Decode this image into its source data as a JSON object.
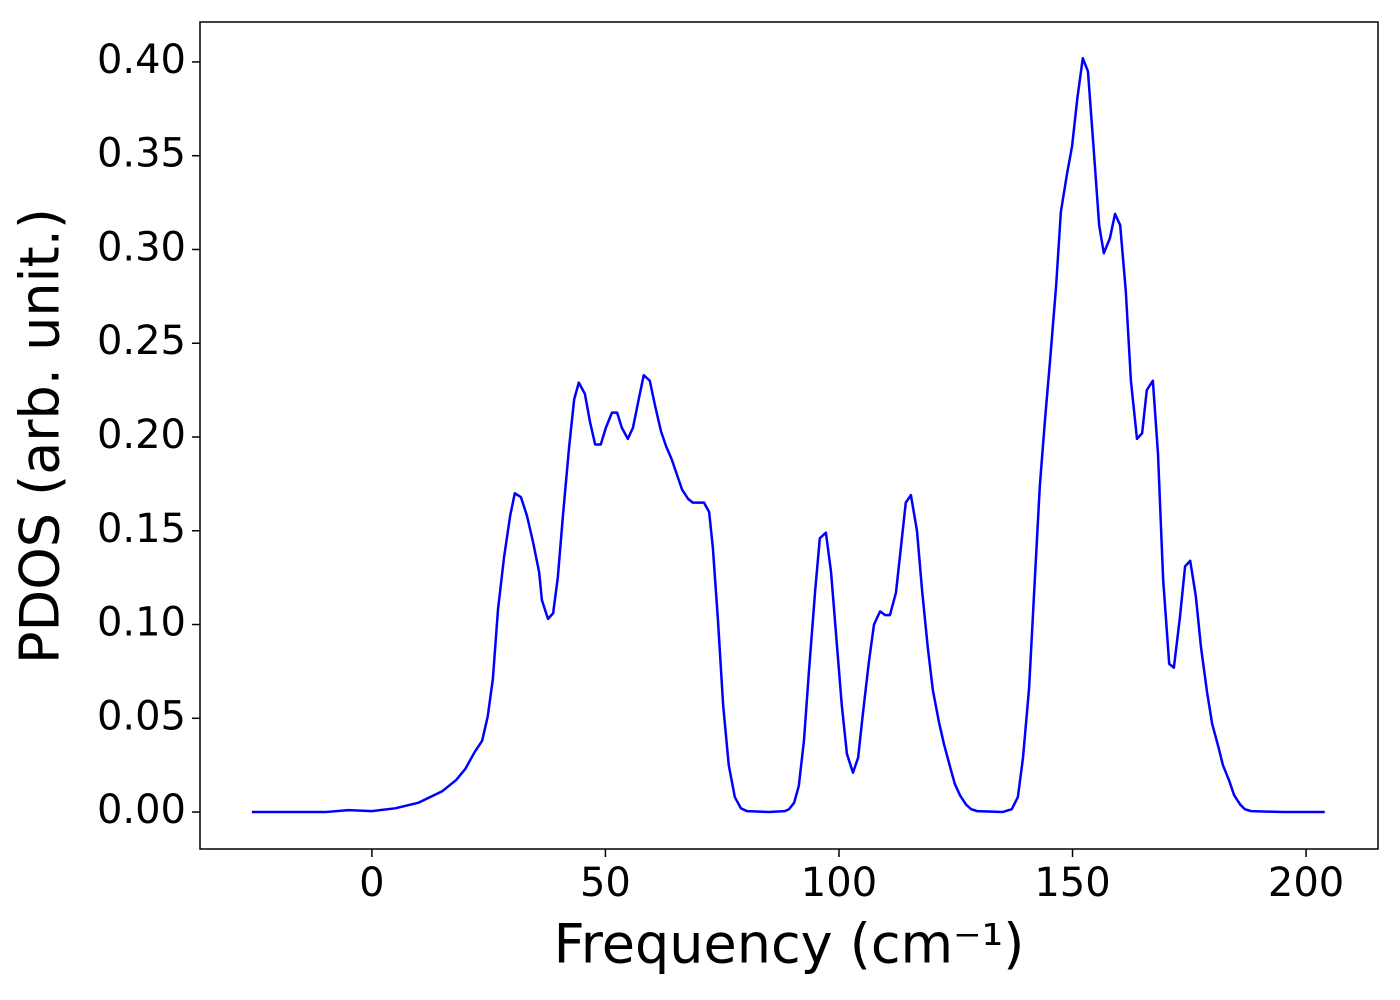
{
  "chart_data": {
    "type": "line",
    "x_label": "Frequency (cm⁻¹)",
    "y_label": "PDOS (arb. unit.)",
    "color": "#0000ff",
    "grid": false,
    "x": [
      -25.7,
      -10,
      -5,
      0,
      5,
      10,
      15,
      18,
      20,
      22,
      23.6,
      24.8,
      25.9,
      27,
      28.3,
      29.6,
      30.6,
      31.9,
      33.2,
      34.5,
      35.8,
      36.4,
      37.7,
      38.8,
      39.8,
      40.9,
      42.2,
      43.3,
      44.3,
      45.6,
      46.7,
      47.8,
      49,
      50.1,
      51.4,
      52.5,
      53.5,
      54.8,
      55.9,
      57.2,
      58.2,
      59.5,
      60.6,
      61.9,
      63,
      64.2,
      65.3,
      66.4,
      67.7,
      68.7,
      70,
      71.1,
      72.2,
      73,
      74.1,
      75.2,
      76.4,
      77.7,
      79,
      80.3,
      85,
      88.4,
      89.3,
      90.4,
      91.4,
      92.5,
      93.6,
      94.9,
      95.9,
      97.2,
      98.3,
      99.4,
      100.6,
      101.7,
      103,
      104.1,
      105.1,
      106.4,
      107.5,
      108.8,
      109.9,
      110.9,
      112.2,
      113.3,
      114.3,
      115.4,
      116.7,
      117.8,
      119,
      120.1,
      121.4,
      122.5,
      123.8,
      124.8,
      125.9,
      127.2,
      128.3,
      129.6,
      135,
      137,
      138.3,
      139.4,
      140.7,
      141.8,
      143,
      144.1,
      145.2,
      146.5,
      147.5,
      148.8,
      149.9,
      151,
      152.2,
      153.3,
      154.4,
      155.7,
      156.7,
      158,
      159.1,
      160.2,
      161.4,
      162.5,
      163.8,
      164.9,
      165.9,
      167.2,
      168.3,
      169.4,
      170.7,
      171.7,
      173,
      174.1,
      175.2,
      176.4,
      177.5,
      178.8,
      179.9,
      181.2,
      182.2,
      183.5,
      184.6,
      185.9,
      186.9,
      188.2,
      195,
      204
    ],
    "values": [
      0,
      0,
      0.001,
      0.0005,
      0.002,
      0.005,
      0.011,
      0.017,
      0.023,
      0.032,
      0.038,
      0.051,
      0.071,
      0.108,
      0.136,
      0.158,
      0.17,
      0.168,
      0.158,
      0.144,
      0.128,
      0.113,
      0.103,
      0.106,
      0.125,
      0.158,
      0.194,
      0.22,
      0.229,
      0.223,
      0.208,
      0.196,
      0.196,
      0.205,
      0.213,
      0.213,
      0.205,
      0.199,
      0.205,
      0.221,
      0.233,
      0.23,
      0.217,
      0.203,
      0.195,
      0.188,
      0.18,
      0.172,
      0.167,
      0.165,
      0.165,
      0.165,
      0.16,
      0.141,
      0.102,
      0.057,
      0.025,
      0.008,
      0.002,
      0.0005,
      0,
      0.0005,
      0.0015,
      0.005,
      0.014,
      0.038,
      0.076,
      0.118,
      0.146,
      0.149,
      0.128,
      0.094,
      0.057,
      0.031,
      0.021,
      0.029,
      0.052,
      0.08,
      0.1,
      0.107,
      0.105,
      0.105,
      0.117,
      0.142,
      0.165,
      0.169,
      0.15,
      0.118,
      0.088,
      0.065,
      0.048,
      0.036,
      0.024,
      0.015,
      0.009,
      0.004,
      0.0015,
      0.0005,
      0,
      0.0015,
      0.008,
      0.029,
      0.066,
      0.118,
      0.174,
      0.209,
      0.241,
      0.281,
      0.32,
      0.34,
      0.355,
      0.38,
      0.402,
      0.395,
      0.358,
      0.313,
      0.298,
      0.306,
      0.319,
      0.313,
      0.278,
      0.23,
      0.199,
      0.202,
      0.225,
      0.23,
      0.191,
      0.124,
      0.079,
      0.077,
      0.104,
      0.131,
      0.134,
      0.115,
      0.088,
      0.064,
      0.047,
      0.035,
      0.025,
      0.017,
      0.009,
      0.004,
      0.0015,
      0.0005,
      0,
      0
    ],
    "xlim": [
      -36.8,
      215.4
    ],
    "ylim": [
      -0.0197,
      0.4213
    ],
    "xticks": [
      0,
      50,
      100,
      150,
      200
    ],
    "yticks": [
      {
        "value": 0,
        "label": "0.00"
      },
      {
        "value": 0.05,
        "label": "0.05"
      },
      {
        "value": 0.1,
        "label": "0.10"
      },
      {
        "value": 0.15,
        "label": "0.15"
      },
      {
        "value": 0.2,
        "label": "0.20"
      },
      {
        "value": 0.25,
        "label": "0.25"
      },
      {
        "value": 0.3,
        "label": "0.30"
      },
      {
        "value": 0.35,
        "label": "0.35"
      },
      {
        "value": 0.4,
        "label": "0.40"
      }
    ]
  }
}
